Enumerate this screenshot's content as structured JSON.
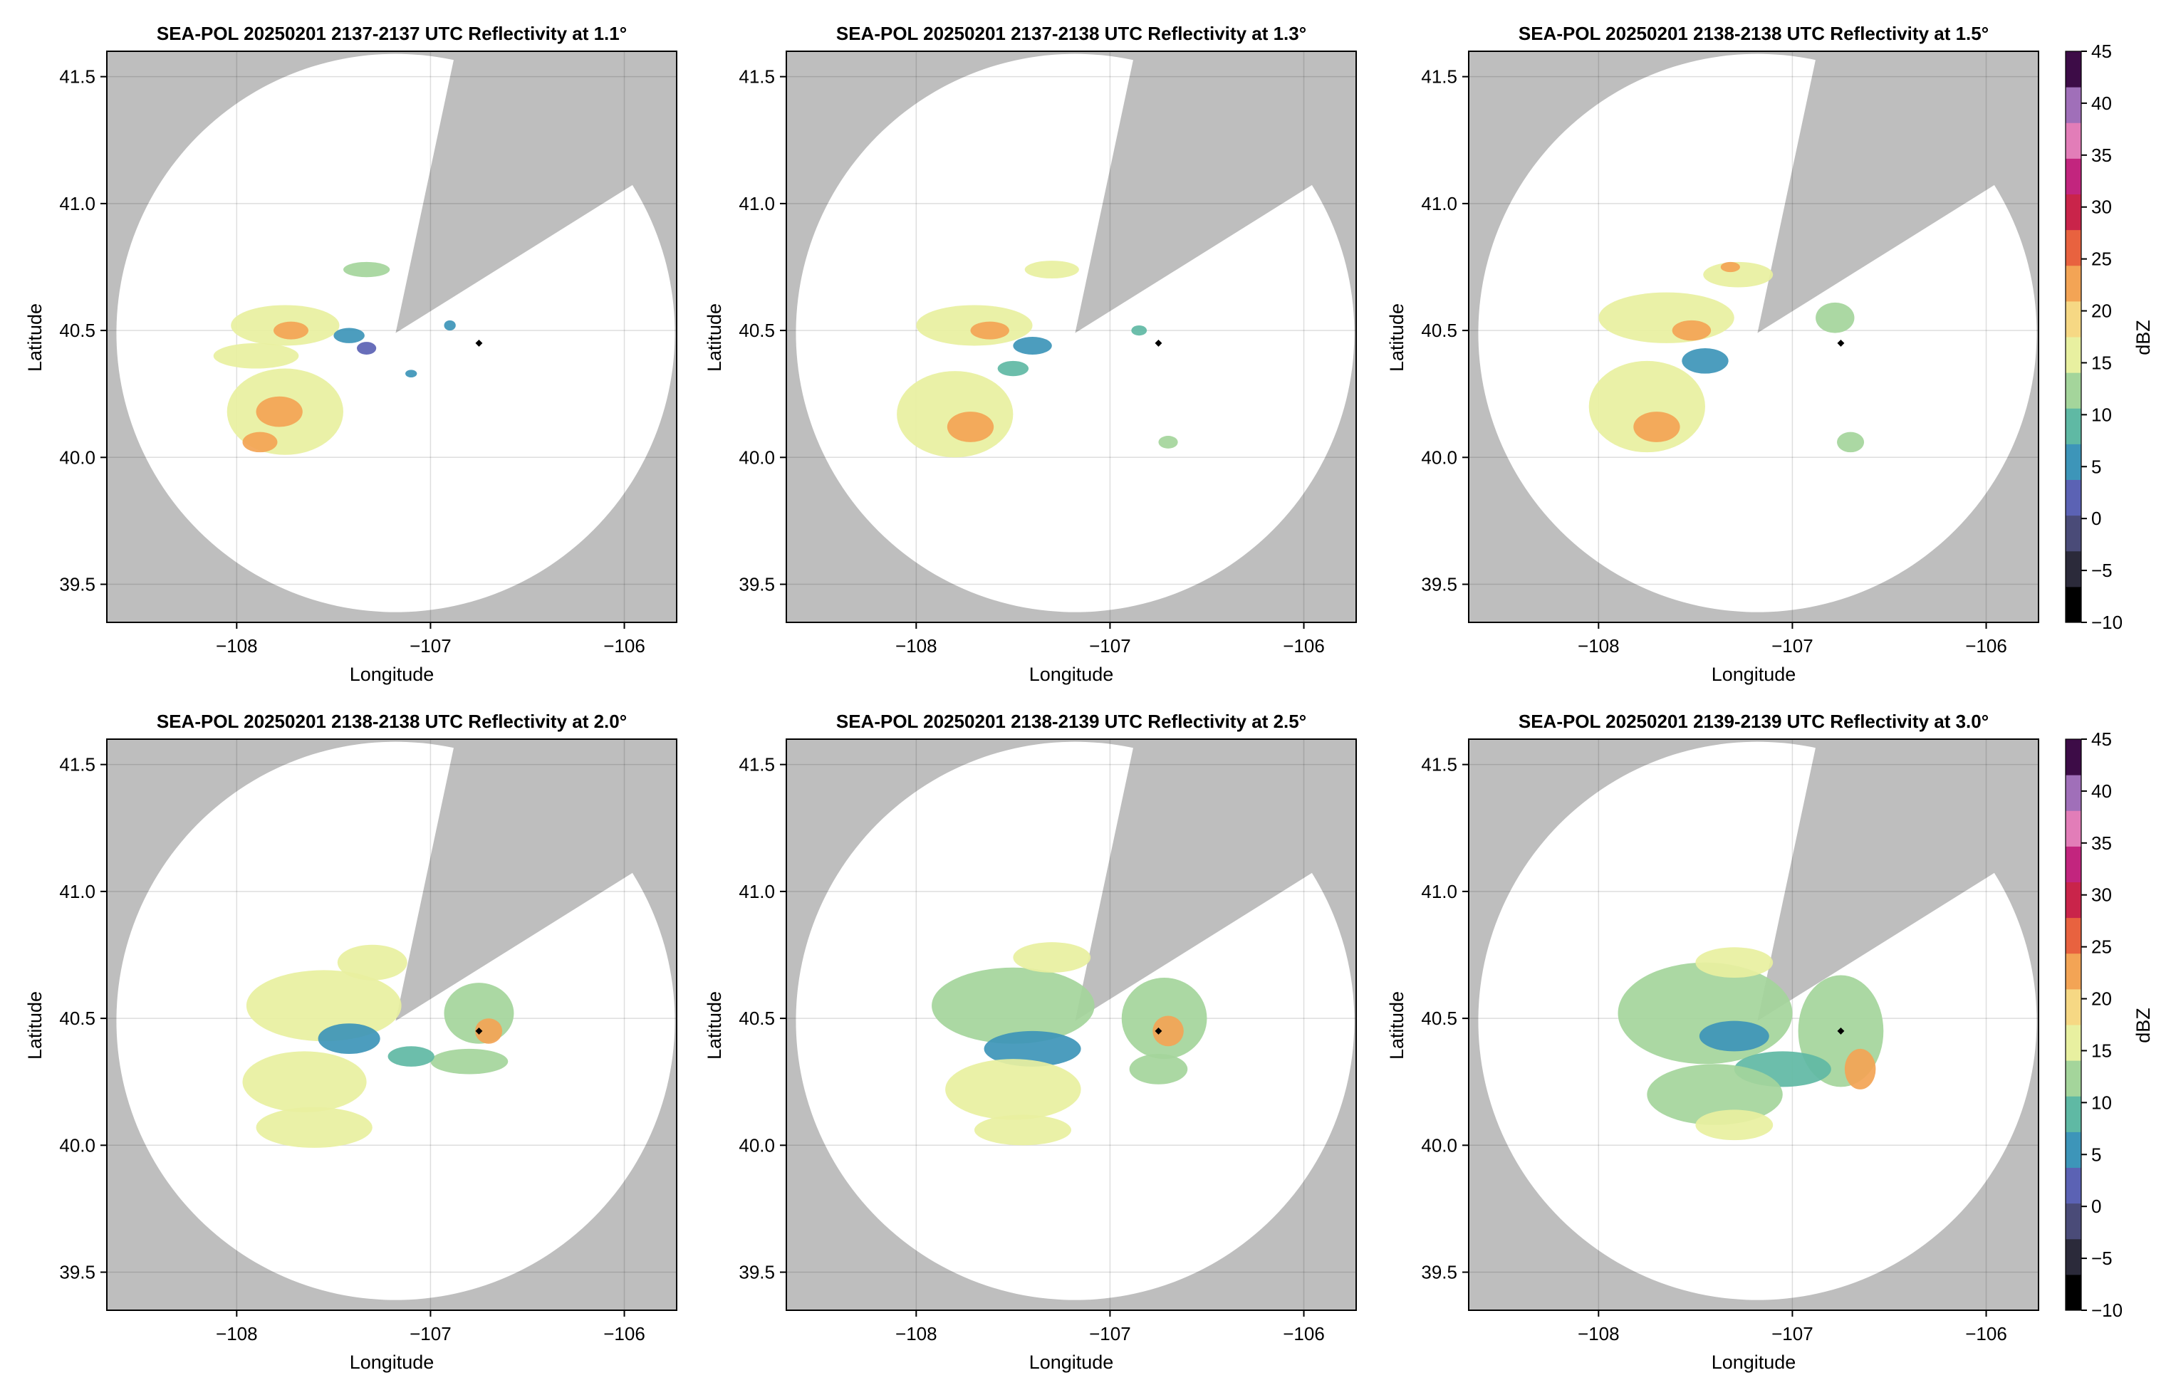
{
  "figure": {
    "colorbar": {
      "label": "dBZ",
      "ticks": [
        45,
        40,
        35,
        30,
        25,
        20,
        15,
        10,
        5,
        0,
        -5,
        -10
      ],
      "tick_labels": [
        "45",
        "40",
        "35",
        "30",
        "25",
        "20",
        "15",
        "10",
        "5",
        "0",
        "−5",
        "−10"
      ],
      "range": [
        -10,
        45
      ],
      "colors": [
        "#000000",
        "#2b2a3a",
        "#4a4b78",
        "#5b62b4",
        "#3d95b9",
        "#5fb9a4",
        "#a4d59b",
        "#e8f0a0",
        "#f6d884",
        "#f3a455",
        "#e8623f",
        "#c9244a",
        "#c2257e",
        "#e27db8",
        "#a06fb9",
        "#3d0c47"
      ]
    },
    "background_color": "#bebebe",
    "coverage_color": "#ffffff",
    "radar_marker_color": "#000000"
  },
  "chart_data": [
    {
      "type": "heatmap",
      "title": "SEA-POL 20250201 2137-2137 UTC Reflectivity at 1.1°",
      "xlabel": "Longitude",
      "ylabel": "Latitude",
      "xlim": [
        -108.67,
        -105.73
      ],
      "ylim": [
        39.35,
        41.6
      ],
      "x_ticks": [
        -108,
        -107,
        -106
      ],
      "x_tick_labels": [
        "−108",
        "−107",
        "−106"
      ],
      "y_ticks": [
        39.5,
        40.0,
        40.5,
        41.0,
        41.5
      ],
      "y_tick_labels": [
        "39.5",
        "40.0",
        "40.5",
        "41.0",
        "41.5"
      ],
      "grid": true,
      "radar_site": {
        "lon": -107.18,
        "lat": 40.49
      },
      "marker": {
        "lon": -106.75,
        "lat": 40.45
      },
      "blanked_sector_deg": [
        12,
        58
      ],
      "cells": [
        {
          "lon": -107.75,
          "lat": 40.52,
          "rx": 0.28,
          "ry": 0.08,
          "dbz": 17
        },
        {
          "lon": -107.72,
          "lat": 40.5,
          "rx": 0.09,
          "ry": 0.035,
          "dbz": 24
        },
        {
          "lon": -107.42,
          "lat": 40.48,
          "rx": 0.08,
          "ry": 0.03,
          "dbz": 6
        },
        {
          "lon": -107.33,
          "lat": 40.43,
          "rx": 0.05,
          "ry": 0.025,
          "dbz": 1
        },
        {
          "lon": -107.33,
          "lat": 40.74,
          "rx": 0.12,
          "ry": 0.03,
          "dbz": 13
        },
        {
          "lon": -107.9,
          "lat": 40.4,
          "rx": 0.22,
          "ry": 0.05,
          "dbz": 17
        },
        {
          "lon": -107.75,
          "lat": 40.18,
          "rx": 0.3,
          "ry": 0.17,
          "dbz": 17
        },
        {
          "lon": -107.78,
          "lat": 40.18,
          "rx": 0.12,
          "ry": 0.06,
          "dbz": 22
        },
        {
          "lon": -107.88,
          "lat": 40.06,
          "rx": 0.09,
          "ry": 0.04,
          "dbz": 21
        },
        {
          "lon": -106.9,
          "lat": 40.52,
          "rx": 0.03,
          "ry": 0.02,
          "dbz": 6
        },
        {
          "lon": -107.1,
          "lat": 40.33,
          "rx": 0.03,
          "ry": 0.015,
          "dbz": 7
        }
      ]
    },
    {
      "type": "heatmap",
      "title": "SEA-POL 20250201 2137-2138 UTC Reflectivity at 1.3°",
      "xlabel": "Longitude",
      "ylabel": "Latitude",
      "xlim": [
        -108.67,
        -105.73
      ],
      "ylim": [
        39.35,
        41.6
      ],
      "x_ticks": [
        -108,
        -107,
        -106
      ],
      "x_tick_labels": [
        "−108",
        "−107",
        "−106"
      ],
      "y_ticks": [
        39.5,
        40.0,
        40.5,
        41.0,
        41.5
      ],
      "y_tick_labels": [
        "39.5",
        "40.0",
        "40.5",
        "41.0",
        "41.5"
      ],
      "grid": true,
      "radar_site": {
        "lon": -107.18,
        "lat": 40.49
      },
      "marker": {
        "lon": -106.75,
        "lat": 40.45
      },
      "blanked_sector_deg": [
        12,
        58
      ],
      "cells": [
        {
          "lon": -107.7,
          "lat": 40.52,
          "rx": 0.3,
          "ry": 0.08,
          "dbz": 17
        },
        {
          "lon": -107.62,
          "lat": 40.5,
          "rx": 0.1,
          "ry": 0.035,
          "dbz": 23
        },
        {
          "lon": -107.4,
          "lat": 40.44,
          "rx": 0.1,
          "ry": 0.035,
          "dbz": 6
        },
        {
          "lon": -107.5,
          "lat": 40.35,
          "rx": 0.08,
          "ry": 0.03,
          "dbz": 8
        },
        {
          "lon": -107.3,
          "lat": 40.74,
          "rx": 0.14,
          "ry": 0.035,
          "dbz": 15
        },
        {
          "lon": -107.8,
          "lat": 40.17,
          "rx": 0.3,
          "ry": 0.17,
          "dbz": 17
        },
        {
          "lon": -107.72,
          "lat": 40.12,
          "rx": 0.12,
          "ry": 0.06,
          "dbz": 22
        },
        {
          "lon": -106.85,
          "lat": 40.5,
          "rx": 0.04,
          "ry": 0.02,
          "dbz": 10
        },
        {
          "lon": -106.7,
          "lat": 40.06,
          "rx": 0.05,
          "ry": 0.025,
          "dbz": 14
        }
      ]
    },
    {
      "type": "heatmap",
      "title": "SEA-POL 20250201 2138-2138 UTC Reflectivity at 1.5°",
      "xlabel": "Longitude",
      "ylabel": "Latitude",
      "xlim": [
        -108.67,
        -105.73
      ],
      "ylim": [
        39.35,
        41.6
      ],
      "x_ticks": [
        -108,
        -107,
        -106
      ],
      "x_tick_labels": [
        "−108",
        "−107",
        "−106"
      ],
      "y_ticks": [
        39.5,
        40.0,
        40.5,
        41.0,
        41.5
      ],
      "y_tick_labels": [
        "39.5",
        "40.0",
        "40.5",
        "41.0",
        "41.5"
      ],
      "grid": true,
      "radar_site": {
        "lon": -107.18,
        "lat": 40.49
      },
      "marker": {
        "lon": -106.75,
        "lat": 40.45
      },
      "blanked_sector_deg": [
        12,
        58
      ],
      "cells": [
        {
          "lon": -107.65,
          "lat": 40.55,
          "rx": 0.35,
          "ry": 0.1,
          "dbz": 16
        },
        {
          "lon": -107.52,
          "lat": 40.5,
          "rx": 0.1,
          "ry": 0.04,
          "dbz": 21
        },
        {
          "lon": -107.28,
          "lat": 40.72,
          "rx": 0.18,
          "ry": 0.05,
          "dbz": 16
        },
        {
          "lon": -107.32,
          "lat": 40.75,
          "rx": 0.05,
          "ry": 0.02,
          "dbz": 24
        },
        {
          "lon": -107.45,
          "lat": 40.38,
          "rx": 0.12,
          "ry": 0.05,
          "dbz": 6
        },
        {
          "lon": -107.75,
          "lat": 40.2,
          "rx": 0.3,
          "ry": 0.18,
          "dbz": 16
        },
        {
          "lon": -107.7,
          "lat": 40.12,
          "rx": 0.12,
          "ry": 0.06,
          "dbz": 22
        },
        {
          "lon": -106.78,
          "lat": 40.55,
          "rx": 0.1,
          "ry": 0.06,
          "dbz": 12
        },
        {
          "lon": -106.7,
          "lat": 40.06,
          "rx": 0.07,
          "ry": 0.04,
          "dbz": 13
        }
      ]
    },
    {
      "type": "heatmap",
      "title": "SEA-POL 20250201 2138-2138 UTC Reflectivity at 2.0°",
      "xlabel": "Longitude",
      "ylabel": "Latitude",
      "xlim": [
        -108.67,
        -105.73
      ],
      "ylim": [
        39.35,
        41.6
      ],
      "x_ticks": [
        -108,
        -107,
        -106
      ],
      "x_tick_labels": [
        "−108",
        "−107",
        "−106"
      ],
      "y_ticks": [
        39.5,
        40.0,
        40.5,
        41.0,
        41.5
      ],
      "y_tick_labels": [
        "39.5",
        "40.0",
        "40.5",
        "41.0",
        "41.5"
      ],
      "grid": true,
      "radar_site": {
        "lon": -107.18,
        "lat": 40.49
      },
      "marker": {
        "lon": -106.75,
        "lat": 40.45
      },
      "blanked_sector_deg": [
        12,
        58
      ],
      "cells": [
        {
          "lon": -107.55,
          "lat": 40.55,
          "rx": 0.4,
          "ry": 0.14,
          "dbz": 15
        },
        {
          "lon": -107.3,
          "lat": 40.72,
          "rx": 0.18,
          "ry": 0.07,
          "dbz": 16
        },
        {
          "lon": -107.42,
          "lat": 40.42,
          "rx": 0.16,
          "ry": 0.06,
          "dbz": 5
        },
        {
          "lon": -106.75,
          "lat": 40.52,
          "rx": 0.18,
          "ry": 0.12,
          "dbz": 13
        },
        {
          "lon": -106.7,
          "lat": 40.45,
          "rx": 0.07,
          "ry": 0.05,
          "dbz": 21
        },
        {
          "lon": -106.8,
          "lat": 40.33,
          "rx": 0.2,
          "ry": 0.05,
          "dbz": 12
        },
        {
          "lon": -107.65,
          "lat": 40.25,
          "rx": 0.32,
          "ry": 0.12,
          "dbz": 16
        },
        {
          "lon": -107.6,
          "lat": 40.07,
          "rx": 0.3,
          "ry": 0.08,
          "dbz": 17
        },
        {
          "lon": -107.1,
          "lat": 40.35,
          "rx": 0.12,
          "ry": 0.04,
          "dbz": 8
        }
      ]
    },
    {
      "type": "heatmap",
      "title": "SEA-POL 20250201 2138-2139 UTC Reflectivity at 2.5°",
      "xlabel": "Longitude",
      "ylabel": "Latitude",
      "xlim": [
        -108.67,
        -105.73
      ],
      "ylim": [
        39.35,
        41.6
      ],
      "x_ticks": [
        -108,
        -107,
        -106
      ],
      "x_tick_labels": [
        "−108",
        "−107",
        "−106"
      ],
      "y_ticks": [
        39.5,
        40.0,
        40.5,
        41.0,
        41.5
      ],
      "y_tick_labels": [
        "39.5",
        "40.0",
        "40.5",
        "41.0",
        "41.5"
      ],
      "grid": true,
      "radar_site": {
        "lon": -107.18,
        "lat": 40.49
      },
      "marker": {
        "lon": -106.75,
        "lat": 40.45
      },
      "blanked_sector_deg": [
        12,
        58
      ],
      "cells": [
        {
          "lon": -107.5,
          "lat": 40.55,
          "rx": 0.42,
          "ry": 0.15,
          "dbz": 14
        },
        {
          "lon": -107.3,
          "lat": 40.74,
          "rx": 0.2,
          "ry": 0.06,
          "dbz": 16
        },
        {
          "lon": -107.4,
          "lat": 40.38,
          "rx": 0.25,
          "ry": 0.07,
          "dbz": 5
        },
        {
          "lon": -106.72,
          "lat": 40.5,
          "rx": 0.22,
          "ry": 0.16,
          "dbz": 12
        },
        {
          "lon": -106.7,
          "lat": 40.45,
          "rx": 0.08,
          "ry": 0.06,
          "dbz": 21
        },
        {
          "lon": -106.75,
          "lat": 40.3,
          "rx": 0.15,
          "ry": 0.06,
          "dbz": 14
        },
        {
          "lon": -107.5,
          "lat": 40.22,
          "rx": 0.35,
          "ry": 0.12,
          "dbz": 15
        },
        {
          "lon": -107.45,
          "lat": 40.06,
          "rx": 0.25,
          "ry": 0.06,
          "dbz": 16
        }
      ]
    },
    {
      "type": "heatmap",
      "title": "SEA-POL 20250201 2139-2139 UTC Reflectivity at 3.0°",
      "xlabel": "Longitude",
      "ylabel": "Latitude",
      "xlim": [
        -108.67,
        -105.73
      ],
      "ylim": [
        39.35,
        41.6
      ],
      "x_ticks": [
        -108,
        -107,
        -106
      ],
      "x_tick_labels": [
        "−108",
        "−107",
        "−106"
      ],
      "y_ticks": [
        39.5,
        40.0,
        40.5,
        41.0,
        41.5
      ],
      "y_tick_labels": [
        "39.5",
        "40.0",
        "40.5",
        "41.0",
        "41.5"
      ],
      "grid": true,
      "radar_site": {
        "lon": -107.18,
        "lat": 40.49
      },
      "marker": {
        "lon": -106.75,
        "lat": 40.45
      },
      "blanked_sector_deg": [
        12,
        58
      ],
      "cells": [
        {
          "lon": -107.45,
          "lat": 40.52,
          "rx": 0.45,
          "ry": 0.2,
          "dbz": 13
        },
        {
          "lon": -107.3,
          "lat": 40.72,
          "rx": 0.2,
          "ry": 0.06,
          "dbz": 15
        },
        {
          "lon": -107.3,
          "lat": 40.43,
          "rx": 0.18,
          "ry": 0.06,
          "dbz": 5
        },
        {
          "lon": -106.75,
          "lat": 40.45,
          "rx": 0.22,
          "ry": 0.22,
          "dbz": 13
        },
        {
          "lon": -106.65,
          "lat": 40.3,
          "rx": 0.08,
          "ry": 0.08,
          "dbz": 21
        },
        {
          "lon": -107.05,
          "lat": 40.3,
          "rx": 0.25,
          "ry": 0.07,
          "dbz": 9
        },
        {
          "lon": -107.4,
          "lat": 40.2,
          "rx": 0.35,
          "ry": 0.12,
          "dbz": 14
        },
        {
          "lon": -107.3,
          "lat": 40.08,
          "rx": 0.2,
          "ry": 0.06,
          "dbz": 15
        }
      ]
    }
  ]
}
